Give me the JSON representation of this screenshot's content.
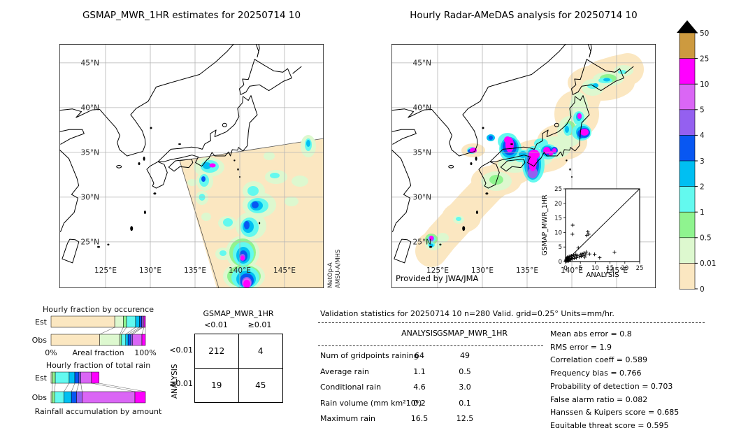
{
  "maps": {
    "left": {
      "title": "GSMAP_MWR_1HR estimates for 20250714 10",
      "credit_lines": [
        "MetOp-A",
        "AMSU-A/MHS"
      ]
    },
    "right": {
      "title": "Hourly Radar-AMeDAS analysis for 20250714 10",
      "credit": "Provided by JWA/JMA"
    },
    "lat_labels": [
      "45°N",
      "40°N",
      "35°N",
      "30°N",
      "25°N"
    ],
    "lon_labels": [
      "125°E",
      "130°E",
      "135°E",
      "140°E",
      "145°E"
    ]
  },
  "colorbar": {
    "labels": [
      "50",
      "25",
      "10",
      "5",
      "4",
      "3",
      "2",
      "1",
      "0.5",
      "0.01",
      "0"
    ],
    "colors": [
      "#CD9A3F",
      "#FF00FF",
      "#DA66F5",
      "#9460F0",
      "#0857F2",
      "#00BFF2",
      "#63F9EF",
      "#8FF48F",
      "#DDF8CF",
      "#FBE7C1"
    ],
    "overflow_color": "#000000"
  },
  "chart_data": [
    {
      "type": "bar",
      "orientation": "horizontal-stacked",
      "title": "Hourly fraction by occurence",
      "xlabel": "Areal fraction",
      "x_ticks": [
        "0%",
        "100%"
      ],
      "bins_mm_hr": [
        "<0.01",
        "0.01-0.5",
        "0.5-1",
        "1-2",
        "2-3",
        "3-4",
        "4-5",
        "5-10",
        "10-25"
      ],
      "rows": [
        {
          "label": "Est",
          "values": [
            67.5,
            9.1,
            3.4,
            9.6,
            4.2,
            2.2,
            1.2,
            1.3,
            1.5
          ],
          "colors": [
            "#FBE7C1",
            "#DDF8CF",
            "#8FF48F",
            "#63F9EF",
            "#00BFF2",
            "#0857F2",
            "#9460F0",
            "#DA66F5",
            "#FF00FF"
          ]
        },
        {
          "label": "Obs",
          "values": [
            51.6,
            21.4,
            1.7,
            4.4,
            2.5,
            2.9,
            2.0,
            9.8,
            3.7
          ],
          "colors": [
            "#FBE7C1",
            "#DDF8CF",
            "#8FF48F",
            "#63F9EF",
            "#00BFF2",
            "#0857F2",
            "#9460F0",
            "#DA66F5",
            "#FF00FF"
          ]
        }
      ]
    },
    {
      "type": "bar",
      "orientation": "horizontal-stacked",
      "title": "Hourly fraction of total rain",
      "xlabel": "Rainfall accumulation by amount",
      "bins_mm_hr": [
        "0.01-0.5",
        "0.5-1",
        "1-2",
        "2-3",
        "3-4",
        "4-5",
        "5-10",
        "10-25"
      ],
      "rows": [
        {
          "label": "Est",
          "values": [
            1.5,
            3.0,
            14.7,
            6.0,
            4.4,
            2.0,
            11.3,
            7.9
          ],
          "colors": [
            "#DDF8CF",
            "#8FF48F",
            "#63F9EF",
            "#00BFF2",
            "#0857F2",
            "#9460F0",
            "#DA66F5",
            "#FF00FF"
          ]
        },
        {
          "label": "Obs",
          "values": [
            1.2,
            2.7,
            9.8,
            7.9,
            5.4,
            5.9,
            56.0,
            11.1
          ],
          "colors": [
            "#DDF8CF",
            "#8FF48F",
            "#63F9EF",
            "#00BFF2",
            "#0857F2",
            "#9460F0",
            "#DA66F5",
            "#FF00FF"
          ]
        }
      ]
    },
    {
      "type": "scatter",
      "xlabel": "ANALYSIS",
      "ylabel": "GSMAP_MWR_1HR",
      "xlim": [
        0,
        25
      ],
      "ylim": [
        0,
        25
      ],
      "ticks": [
        0,
        5,
        10,
        15,
        20,
        25
      ],
      "diagonal": true,
      "points": [
        [
          0.1,
          0.3
        ],
        [
          0.2,
          0.1
        ],
        [
          0.2,
          0.8
        ],
        [
          0.3,
          0.5
        ],
        [
          0.4,
          1.2
        ],
        [
          0.5,
          0.2
        ],
        [
          0.5,
          0.9
        ],
        [
          0.6,
          1.5
        ],
        [
          0.7,
          0.4
        ],
        [
          0.8,
          1.1
        ],
        [
          0.9,
          0.6
        ],
        [
          1.0,
          0.2
        ],
        [
          1.0,
          1.3
        ],
        [
          1.1,
          0.8
        ],
        [
          1.2,
          1.7
        ],
        [
          1.4,
          0.5
        ],
        [
          1.5,
          1.1
        ],
        [
          1.6,
          1.9
        ],
        [
          1.8,
          0.7
        ],
        [
          2.0,
          1.2
        ],
        [
          2.0,
          2.0
        ],
        [
          2.2,
          0.9
        ],
        [
          2.3,
          9.4
        ],
        [
          2.4,
          12.5
        ],
        [
          2.5,
          1.6
        ],
        [
          2.7,
          2.2
        ],
        [
          3.0,
          1.1
        ],
        [
          3.2,
          1.9
        ],
        [
          3.5,
          2.5
        ],
        [
          3.7,
          1.3
        ],
        [
          4.0,
          2.1
        ],
        [
          4.3,
          4.7
        ],
        [
          4.6,
          1.6
        ],
        [
          5.0,
          2.4
        ],
        [
          5.3,
          1.8
        ],
        [
          5.6,
          2.7
        ],
        [
          5.9,
          2.1
        ],
        [
          6.2,
          2.9
        ],
        [
          6.5,
          1.5
        ],
        [
          6.8,
          2.3
        ],
        [
          7.0,
          3.3
        ],
        [
          7.2,
          9.0
        ],
        [
          7.5,
          10.2
        ],
        [
          7.8,
          9.4
        ],
        [
          8.1,
          2.6
        ],
        [
          9.8,
          2.5
        ],
        [
          11.5,
          1.3
        ],
        [
          16.5,
          3.2
        ]
      ]
    },
    {
      "type": "table",
      "col_title": "GSMAP_MWR_1HR",
      "row_title": "ANALYSIS",
      "col_labels": [
        "<0.01",
        "≥0.01"
      ],
      "row_labels": [
        "<0.01",
        "≥0.01"
      ],
      "cells": [
        [
          "212",
          "4"
        ],
        [
          "19",
          "45"
        ]
      ]
    },
    {
      "type": "table",
      "title": "Validation statistics for 20250714 10  n=280 Valid. grid=0.25° Units=mm/hr.",
      "columns": [
        "ANALYSIS",
        "GSMAP_MWR_1HR"
      ],
      "rows": [
        {
          "label": "Num of gridpoints raining",
          "analysis": "64",
          "gsmap": "49"
        },
        {
          "label": "Average rain",
          "analysis": "1.1",
          "gsmap": "0.5"
        },
        {
          "label": "Conditional rain",
          "analysis": "4.6",
          "gsmap": "3.0"
        },
        {
          "label": "Rain volume (mm km²10⁶)",
          "analysis": "0.2",
          "gsmap": "0.1"
        },
        {
          "label": "Maximum rain",
          "analysis": "16.5",
          "gsmap": "12.5"
        }
      ],
      "scores": [
        {
          "label": "Mean abs error",
          "value": "0.8"
        },
        {
          "label": "RMS error",
          "value": "1.9"
        },
        {
          "label": "Correlation coeff",
          "value": "0.589"
        },
        {
          "label": "Frequency bias",
          "value": "0.766"
        },
        {
          "label": "Probability of detection",
          "value": "0.703"
        },
        {
          "label": "False alarm ratio",
          "value": "0.082"
        },
        {
          "label": "Hanssen & Kuipers score",
          "value": "0.685"
        },
        {
          "label": "Equitable threat score",
          "value": "0.595"
        }
      ]
    }
  ]
}
